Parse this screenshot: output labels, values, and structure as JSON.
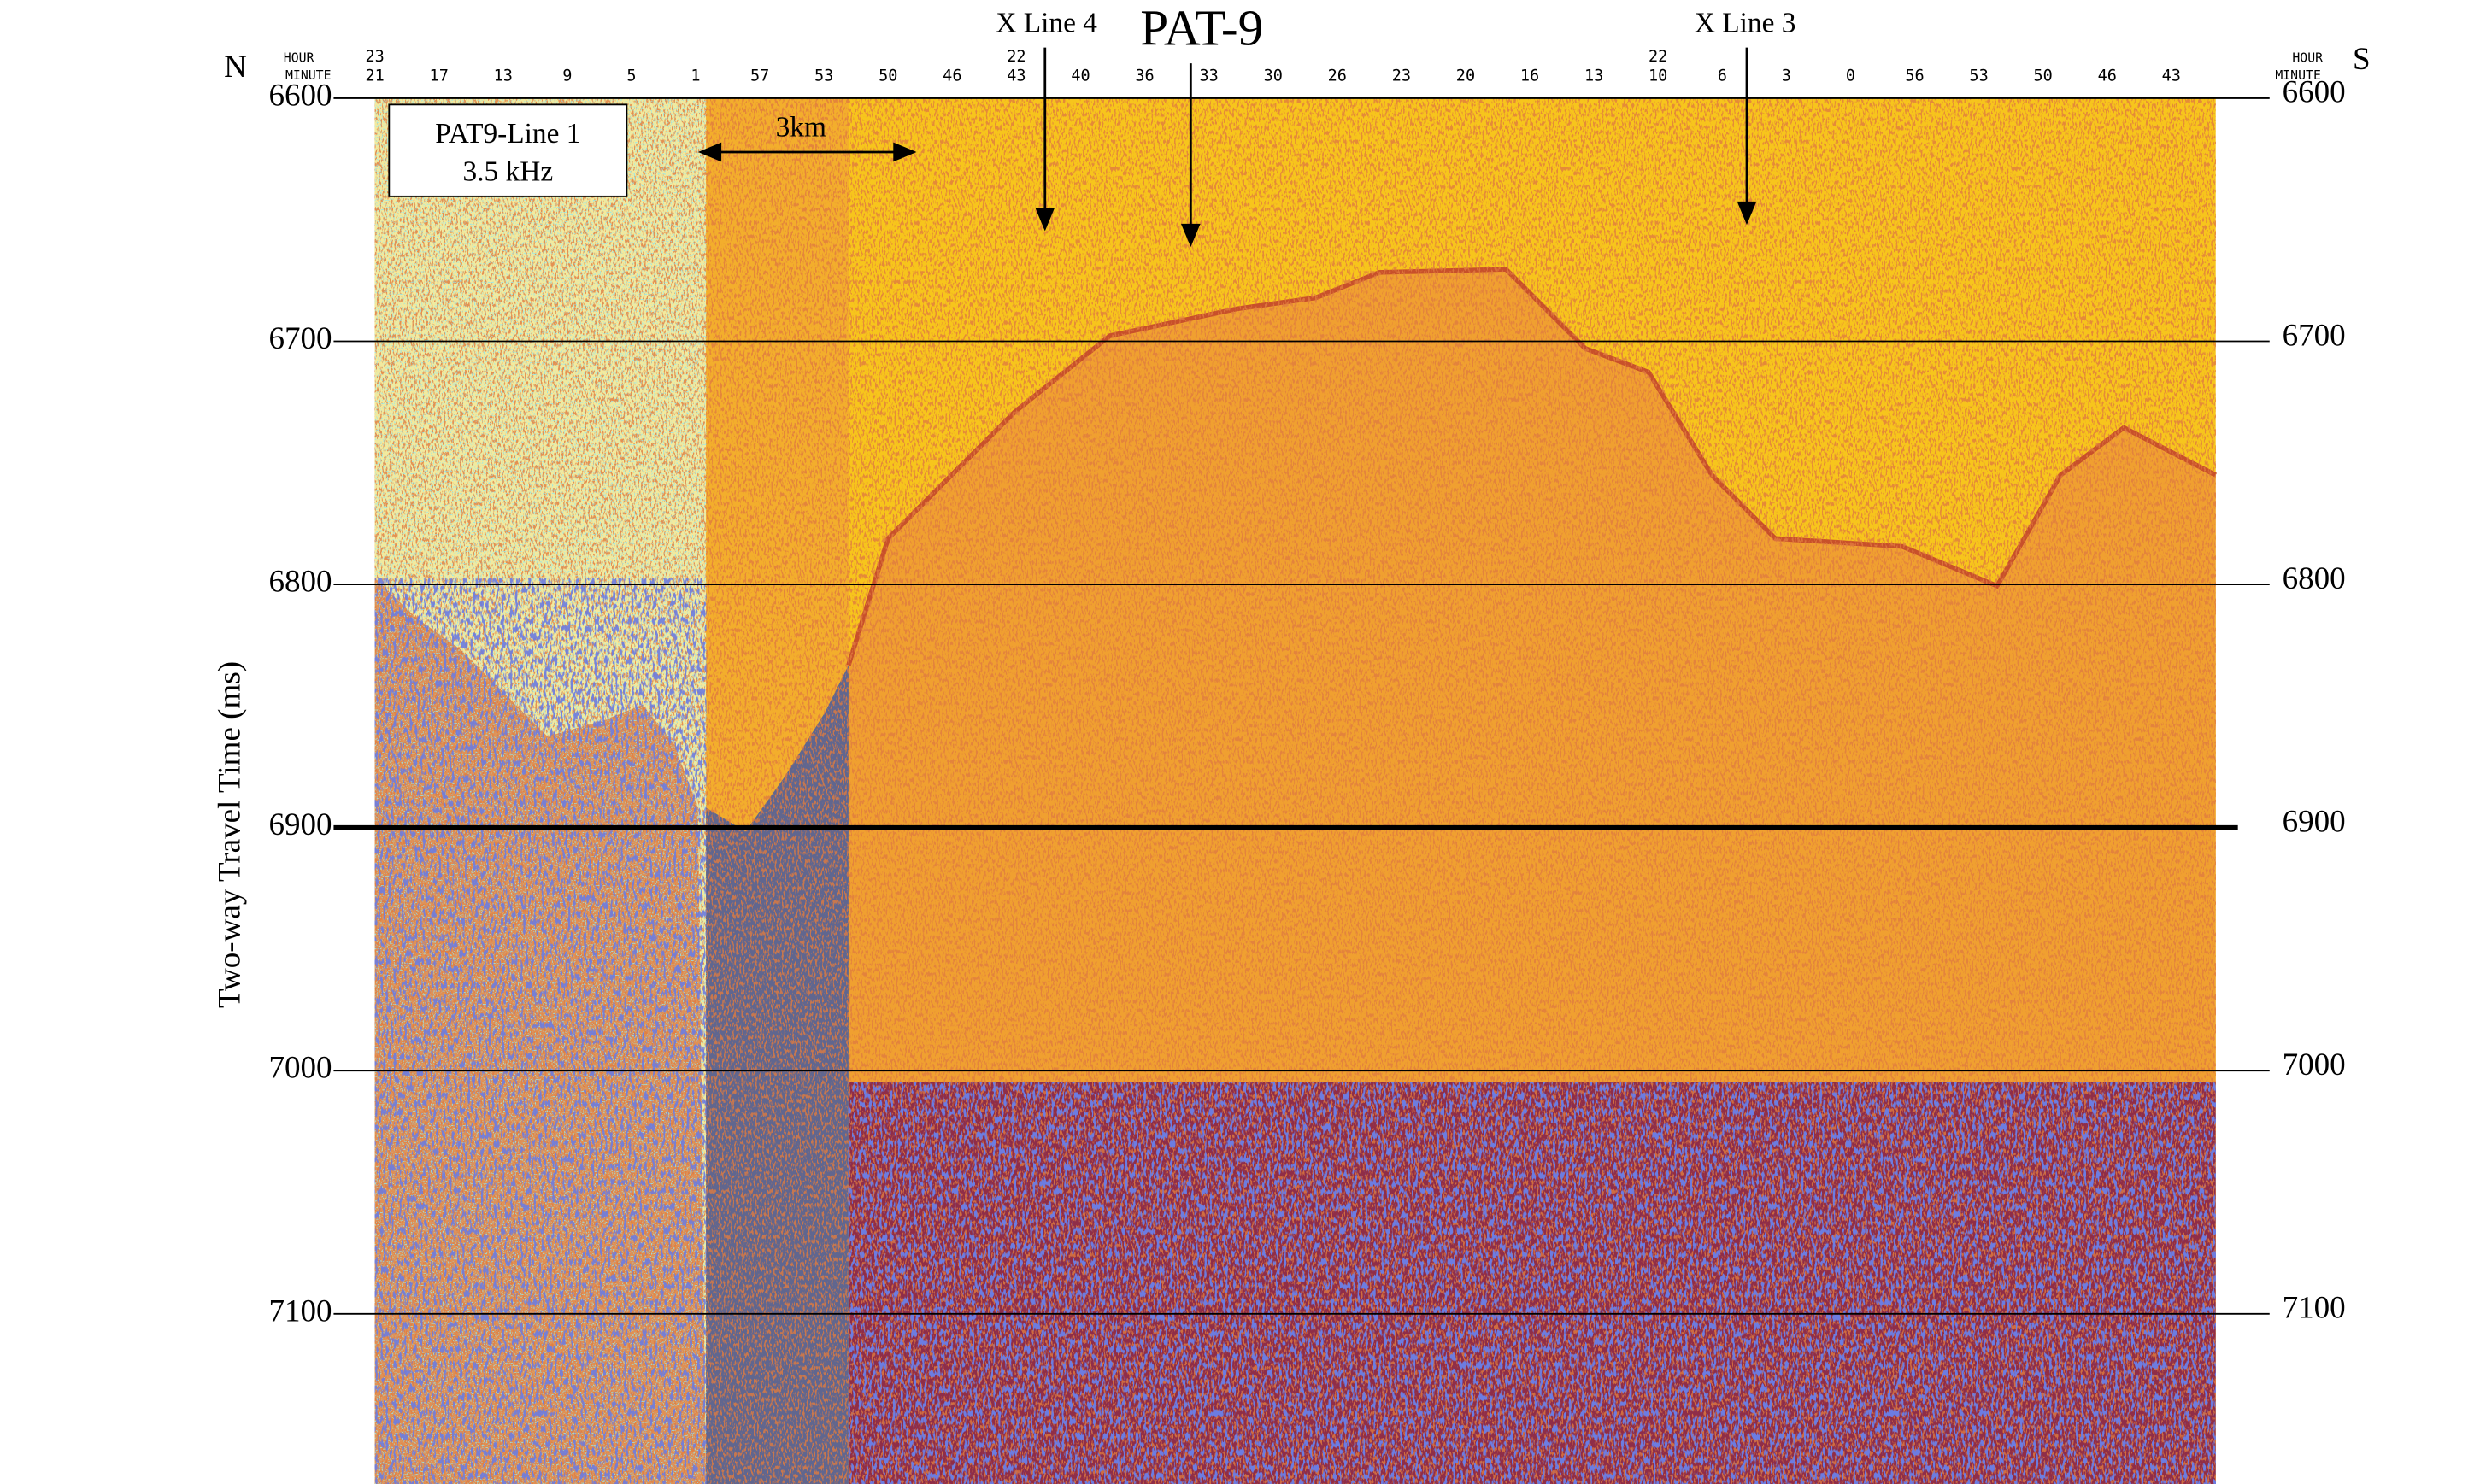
{
  "chart_data": {
    "type": "profile",
    "title": "PAT-9",
    "ylabel": "Two-way Travel Time (ms)",
    "ylim": [
      6600,
      7170
    ],
    "yticks": [
      6600,
      6700,
      6800,
      6900,
      7000,
      7100
    ],
    "emphasis_tick": 6900,
    "left_end": "N",
    "right_end": "S",
    "top_axis": {
      "hour_label": "HOUR",
      "minute_label": "MINUTE",
      "hours": [
        23,
        null,
        null,
        null,
        null,
        null,
        null,
        null,
        null,
        null,
        22,
        null,
        null,
        null,
        null,
        null,
        null,
        null,
        null,
        null,
        22,
        null,
        null,
        null,
        null,
        null,
        null,
        null,
        null
      ],
      "minutes": [
        21,
        17,
        13,
        9,
        5,
        1,
        57,
        53,
        50,
        46,
        43,
        40,
        36,
        33,
        30,
        26,
        23,
        20,
        16,
        13,
        10,
        6,
        3,
        0,
        56,
        53,
        50,
        46,
        43
      ]
    },
    "annotations": {
      "line_name": "PAT9-Line 1",
      "frequency": "3.5 kHz",
      "scale_bar": "3km",
      "cross_line_a": "X Line 4",
      "cross_line_b": "X Line 3"
    }
  }
}
